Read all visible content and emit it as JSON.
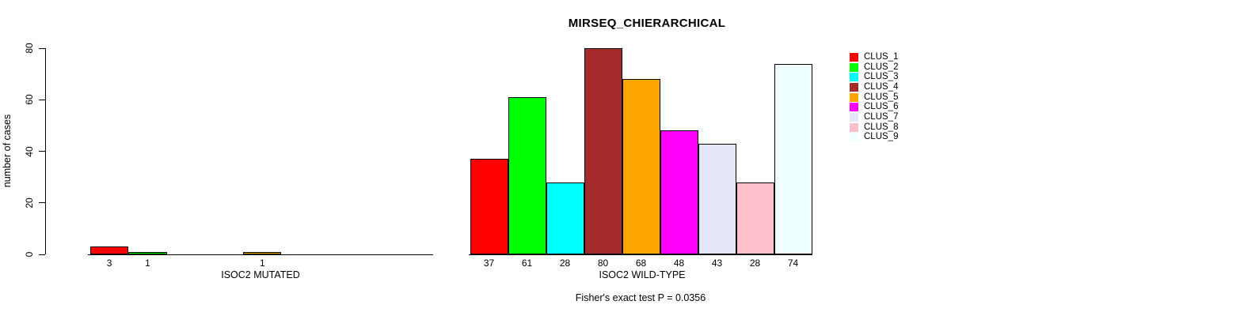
{
  "chart_data": {
    "type": "bar",
    "title": "MIRSEQ_CHIERARCHICAL",
    "subtitle": "Fisher's exact test P = 0.0356",
    "ylabel": "number of cases",
    "xlabel": "",
    "ylim": [
      0,
      80
    ],
    "yticks": [
      0,
      20,
      40,
      60,
      80
    ],
    "grid": false,
    "legend_position": "right",
    "categories": [
      "CLUS_1",
      "CLUS_2",
      "CLUS_3",
      "CLUS_4",
      "CLUS_5",
      "CLUS_6",
      "CLUS_7",
      "CLUS_8",
      "CLUS_9"
    ],
    "colors": [
      "#FF0000",
      "#00FF00",
      "#00FFFF",
      "#A52A2A",
      "#FFA500",
      "#FF00FF",
      "#E6E6FA",
      "#FFC0CB",
      "#F0FFFF"
    ],
    "series": [
      {
        "name": "ISOC2 MUTATED",
        "values": [
          3,
          1,
          0,
          0,
          1,
          0,
          0,
          0,
          0
        ]
      },
      {
        "name": "ISOC2 WILD-TYPE",
        "values": [
          37,
          61,
          28,
          80,
          68,
          48,
          43,
          28,
          74
        ]
      }
    ],
    "panels": [
      {
        "label": "ISOC2 MUTATED"
      },
      {
        "label": "ISOC2 WILD-TYPE"
      }
    ]
  }
}
